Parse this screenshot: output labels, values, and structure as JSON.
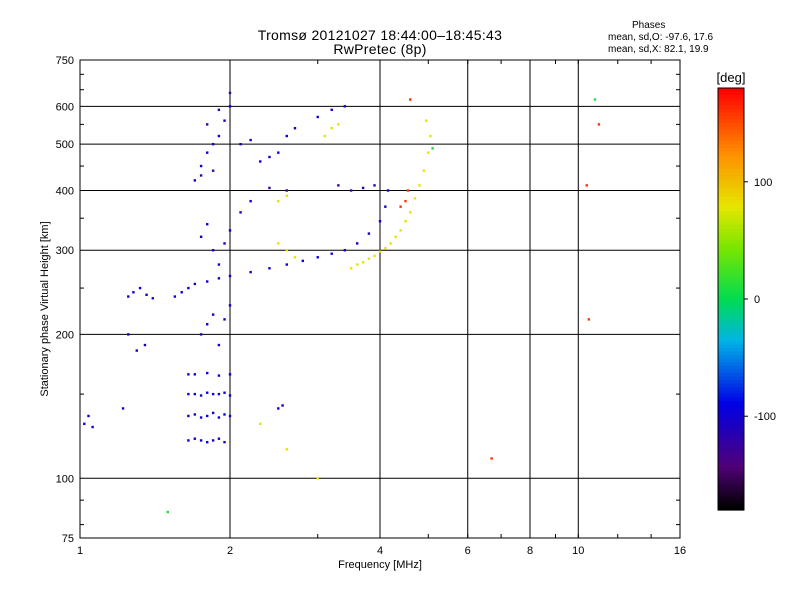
{
  "header": {
    "title_line1": "Tromsø 20121027 18:44:00–18:45:43",
    "title_line2": "RwPretec (8p)"
  },
  "phases_box": {
    "heading": "Phases",
    "line_o": "mean, sd,O: -97.6, 17.6",
    "line_x": "mean, sd,X:  82.1, 19.9"
  },
  "chart_data": {
    "type": "scatter",
    "xlabel": "Frequency [MHz]",
    "ylabel": "Stationary phase Virtual Height [km]",
    "x_scale": "log",
    "y_scale": "log",
    "xlim": [
      1,
      16
    ],
    "ylim": [
      75,
      750
    ],
    "x_ticks": [
      1,
      2,
      4,
      6,
      8,
      10,
      16
    ],
    "y_ticks": [
      75,
      100,
      200,
      300,
      400,
      500,
      600,
      750
    ],
    "x_gridlines": [
      2,
      4,
      6,
      8,
      10
    ],
    "y_gridlines": [
      100,
      200,
      300,
      400,
      500,
      600
    ],
    "colorbar": {
      "label": "[deg]",
      "range": [
        -180,
        180
      ],
      "ticks": [
        100,
        0,
        -100
      ],
      "colormap": "rainbow"
    },
    "series": [
      {
        "phase": -100,
        "points": [
          [
            1.02,
            130
          ],
          [
            1.04,
            135
          ],
          [
            1.06,
            128
          ],
          [
            1.22,
            140
          ],
          [
            1.25,
            240
          ],
          [
            1.28,
            245
          ],
          [
            1.32,
            250
          ],
          [
            1.36,
            242
          ],
          [
            1.4,
            238
          ],
          [
            1.55,
            240
          ],
          [
            1.6,
            245
          ],
          [
            1.65,
            250
          ],
          [
            1.7,
            255
          ],
          [
            1.8,
            258
          ],
          [
            1.9,
            262
          ],
          [
            2.0,
            265
          ],
          [
            2.2,
            270
          ],
          [
            2.4,
            275
          ],
          [
            2.6,
            280
          ],
          [
            2.8,
            285
          ],
          [
            3.0,
            290
          ],
          [
            3.2,
            295
          ],
          [
            3.4,
            300
          ],
          [
            3.6,
            310
          ],
          [
            3.8,
            325
          ],
          [
            4.0,
            345
          ],
          [
            4.1,
            370
          ],
          [
            4.15,
            400
          ],
          [
            1.65,
            120
          ],
          [
            1.7,
            121
          ],
          [
            1.75,
            120
          ],
          [
            1.8,
            119
          ],
          [
            1.85,
            120
          ],
          [
            1.9,
            121
          ],
          [
            1.95,
            119
          ],
          [
            1.65,
            135
          ],
          [
            1.7,
            136
          ],
          [
            1.75,
            134
          ],
          [
            1.8,
            135
          ],
          [
            1.85,
            137
          ],
          [
            1.9,
            134
          ],
          [
            1.95,
            136
          ],
          [
            2.0,
            135
          ],
          [
            1.65,
            150
          ],
          [
            1.7,
            150
          ],
          [
            1.75,
            149
          ],
          [
            1.8,
            151
          ],
          [
            1.85,
            150
          ],
          [
            1.9,
            150
          ],
          [
            1.95,
            151
          ],
          [
            2.0,
            149
          ],
          [
            1.65,
            165
          ],
          [
            1.7,
            165
          ],
          [
            1.8,
            166
          ],
          [
            1.9,
            164
          ],
          [
            2.0,
            165
          ],
          [
            1.7,
            420
          ],
          [
            1.75,
            450
          ],
          [
            1.8,
            480
          ],
          [
            1.85,
            500
          ],
          [
            1.9,
            520
          ],
          [
            1.95,
            560
          ],
          [
            2.0,
            600
          ],
          [
            2.1,
            500
          ],
          [
            2.2,
            510
          ],
          [
            2.3,
            460
          ],
          [
            2.4,
            470
          ],
          [
            2.5,
            480
          ],
          [
            2.6,
            520
          ],
          [
            2.7,
            540
          ],
          [
            3.0,
            570
          ],
          [
            3.2,
            590
          ],
          [
            3.4,
            600
          ],
          [
            1.75,
            320
          ],
          [
            1.8,
            340
          ],
          [
            1.85,
            300
          ],
          [
            1.9,
            280
          ],
          [
            1.95,
            310
          ],
          [
            2.0,
            330
          ],
          [
            2.1,
            360
          ],
          [
            2.2,
            380
          ],
          [
            1.75,
            200
          ],
          [
            1.8,
            210
          ],
          [
            1.85,
            220
          ],
          [
            1.9,
            190
          ],
          [
            1.95,
            215
          ],
          [
            2.0,
            230
          ],
          [
            1.25,
            200
          ],
          [
            1.3,
            185
          ],
          [
            1.35,
            190
          ],
          [
            2.5,
            140
          ],
          [
            2.55,
            142
          ]
        ]
      },
      {
        "phase": -125,
        "points": [
          [
            3.5,
            400
          ],
          [
            3.7,
            405
          ],
          [
            3.9,
            410
          ],
          [
            3.3,
            410
          ],
          [
            2.4,
            405
          ],
          [
            2.6,
            400
          ],
          [
            1.8,
            550
          ],
          [
            1.9,
            590
          ],
          [
            2.0,
            640
          ],
          [
            1.75,
            430
          ],
          [
            1.85,
            440
          ]
        ]
      },
      {
        "phase": 80,
        "points": [
          [
            3.5,
            275
          ],
          [
            3.6,
            280
          ],
          [
            3.7,
            283
          ],
          [
            3.8,
            288
          ],
          [
            3.9,
            292
          ],
          [
            4.0,
            298
          ],
          [
            4.1,
            303
          ],
          [
            4.2,
            310
          ],
          [
            4.3,
            320
          ],
          [
            4.4,
            330
          ],
          [
            4.5,
            345
          ],
          [
            4.6,
            360
          ],
          [
            4.7,
            385
          ],
          [
            4.8,
            410
          ],
          [
            4.9,
            440
          ],
          [
            5.0,
            480
          ],
          [
            5.05,
            520
          ],
          [
            4.95,
            560
          ],
          [
            3.1,
            520
          ],
          [
            3.2,
            540
          ],
          [
            3.3,
            550
          ],
          [
            2.5,
            310
          ],
          [
            2.6,
            300
          ],
          [
            2.7,
            290
          ],
          [
            2.5,
            380
          ],
          [
            2.6,
            390
          ],
          [
            2.3,
            130
          ],
          [
            2.6,
            115
          ],
          [
            3.0,
            100
          ],
          [
            4.6,
            620
          ]
        ]
      },
      {
        "phase": 160,
        "points": [
          [
            4.4,
            370
          ],
          [
            4.5,
            380
          ],
          [
            4.55,
            400
          ],
          [
            4.6,
            620
          ],
          [
            6.7,
            110
          ],
          [
            10.4,
            410
          ],
          [
            11.0,
            550
          ],
          [
            10.5,
            215
          ]
        ]
      },
      {
        "phase": 10,
        "points": [
          [
            5.1,
            490
          ],
          [
            1.5,
            85
          ],
          [
            10.8,
            620
          ]
        ]
      }
    ]
  },
  "colors": {
    "axes": "#000000",
    "background": "#ffffff"
  }
}
